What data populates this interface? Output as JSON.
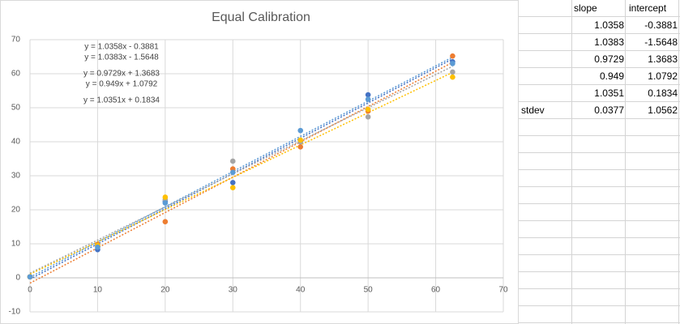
{
  "chart_data": {
    "type": "scatter",
    "title": "Equal Calibration",
    "x": [
      0,
      10,
      20,
      30,
      40,
      50,
      62.5
    ],
    "series": [
      {
        "color": "#4472c4",
        "values": [
          0.3,
          8.3,
          22.5,
          28,
          40,
          53.8,
          63.5
        ],
        "trendline": {
          "slope": 1.0358,
          "intercept": -0.3881,
          "label": "y = 1.0358x - 0.3881"
        }
      },
      {
        "color": "#ed7d31",
        "values": [
          0.3,
          9.8,
          16.5,
          32,
          38.5,
          49,
          65.2
        ],
        "trendline": {
          "slope": 1.0383,
          "intercept": -1.5648,
          "label": "y = 1.0383x - 1.5648"
        }
      },
      {
        "color": "#a5a5a5",
        "values": [
          0.3,
          9.5,
          23,
          34.3,
          40,
          47.3,
          60.5
        ],
        "trendline": {
          "slope": 0.9729,
          "intercept": 1.3683,
          "label": "y = 0.9729x + 1.3683"
        }
      },
      {
        "color": "#ffc000",
        "values": [
          0.3,
          9.5,
          23.7,
          26.5,
          40.5,
          49.5,
          59
        ],
        "trendline": {
          "slope": 0.949,
          "intercept": 1.0792,
          "label": "y = 0.949x + 1.0792"
        }
      },
      {
        "color": "#5b9bd5",
        "values": [
          0.3,
          9,
          22,
          31,
          43.3,
          52.5,
          63
        ],
        "trendline": {
          "slope": 1.0351,
          "intercept": 0.1834,
          "label": "y = 1.0351x + 0.1834"
        }
      }
    ],
    "xlim": [
      0,
      70
    ],
    "xticks": [
      0,
      10,
      20,
      30,
      40,
      50,
      60,
      70
    ],
    "ylim": [
      -10,
      70
    ],
    "yticks": [
      -10,
      0,
      10,
      20,
      30,
      40,
      50,
      60,
      70
    ],
    "grid": true
  },
  "table": {
    "header": [
      "slope",
      "intercept"
    ],
    "rows": [
      [
        1.0358,
        -0.3881
      ],
      [
        1.0383,
        -1.5648
      ],
      [
        0.9729,
        1.3683
      ],
      [
        0.949,
        1.0792
      ],
      [
        1.0351,
        0.1834
      ]
    ],
    "stdev_label": "stdev",
    "stdev": [
      0.0377,
      1.0562
    ]
  }
}
